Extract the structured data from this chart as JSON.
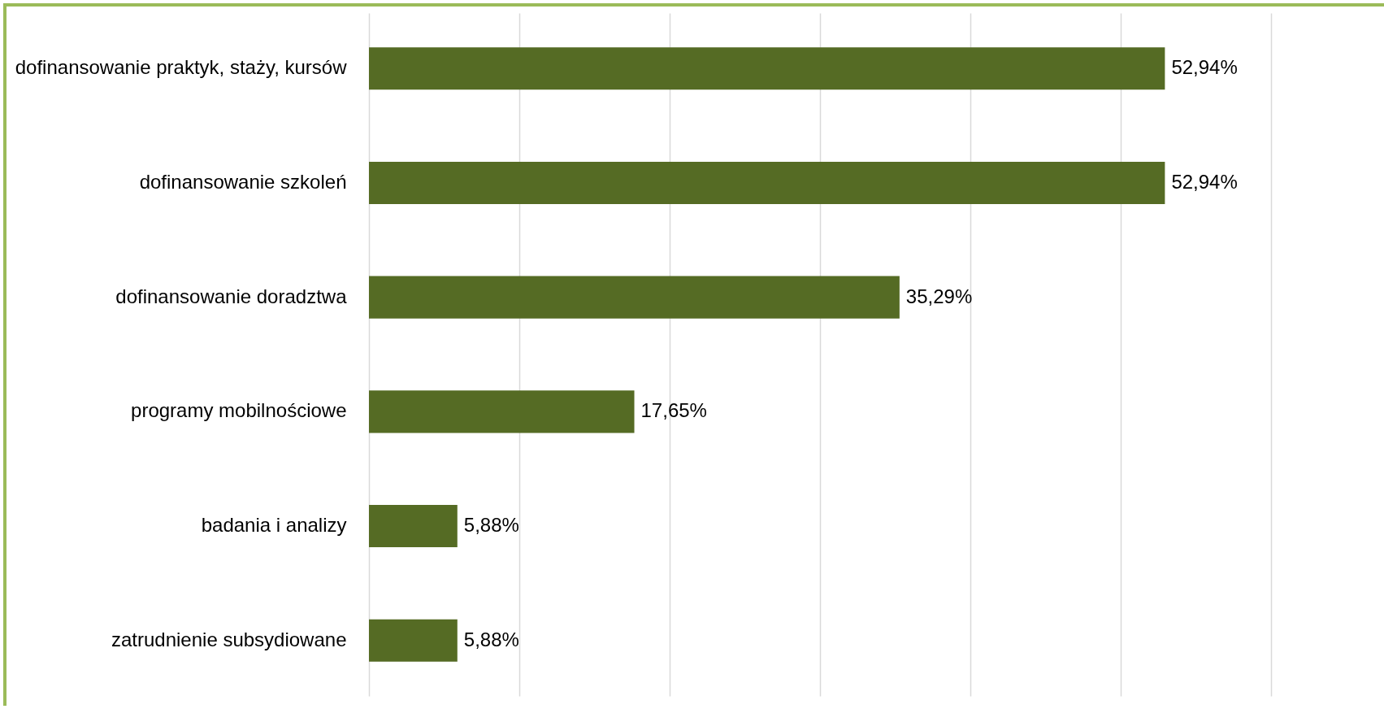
{
  "chart_data": {
    "type": "bar",
    "orientation": "horizontal",
    "categories": [
      "dofinansowanie praktyk, staży, kursów",
      "dofinansowanie szkoleń",
      "dofinansowanie doradztwa",
      "programy mobilnościowe",
      "badania i analizy",
      "zatrudnienie subsydiowane"
    ],
    "values": [
      52.94,
      52.94,
      35.29,
      17.65,
      5.88,
      5.88
    ],
    "value_labels": [
      "52,94%",
      "52,94%",
      "35,29%",
      "17,65%",
      "5,88%",
      "5,88%"
    ],
    "color": "#556b24",
    "xlim": [
      0,
      60
    ],
    "xticks": [
      {
        "value": 0,
        "label": null
      },
      {
        "value": 10,
        "label": null
      },
      {
        "value": 20,
        "label": null
      },
      {
        "value": 30,
        "label": null
      },
      {
        "value": 40,
        "label": null
      },
      {
        "value": 50,
        "label": null
      },
      {
        "value": 60,
        "label": null
      }
    ],
    "grid": "x",
    "tick_labels": "y"
  }
}
